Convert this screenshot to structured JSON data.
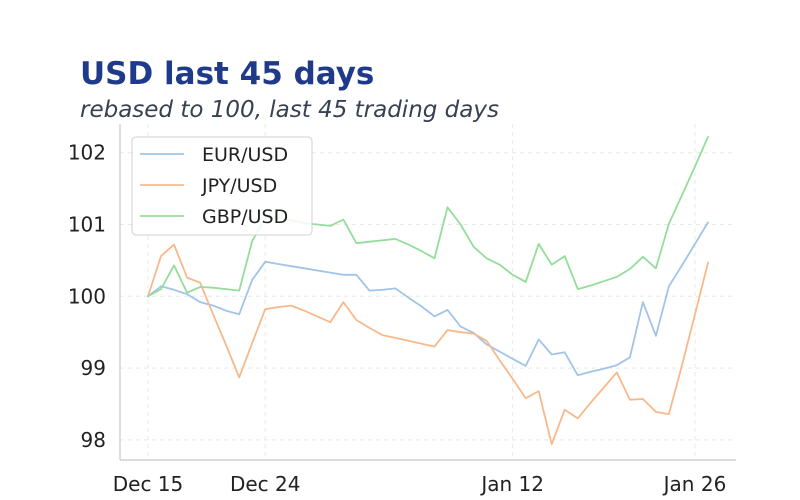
{
  "chart_data": {
    "type": "line",
    "title": "USD last 45 days",
    "subtitle": "rebased to 100, last 45 trading days",
    "xlabel": "",
    "ylabel": "",
    "x_tick_labels": [
      "Dec 15",
      "Dec 24",
      "Jan 12",
      "Jan 26"
    ],
    "x_tick_indices": [
      0,
      9,
      28,
      42
    ],
    "y_ticks": [
      98,
      99,
      100,
      101,
      102
    ],
    "ylim": [
      97.72,
      102.4
    ],
    "grid": true,
    "legend_position": "top-left",
    "colors": [
      "#a1c4e8",
      "#f7b98c",
      "#95dd9b"
    ],
    "series": [
      {
        "name": "EUR/USD",
        "values": [
          100.0,
          100.14,
          100.09,
          100.03,
          99.92,
          99.87,
          99.8,
          99.75,
          100.23,
          100.48,
          100.45,
          100.42,
          100.39,
          100.36,
          100.33,
          100.3,
          100.3,
          100.08,
          100.09,
          100.11,
          99.98,
          99.86,
          99.72,
          99.81,
          99.58,
          99.49,
          99.33,
          99.23,
          99.13,
          99.03,
          99.4,
          99.19,
          99.22,
          98.9,
          98.95,
          98.99,
          99.04,
          99.15,
          99.92,
          99.45,
          100.14,
          100.43,
          100.73,
          101.03
        ]
      },
      {
        "name": "JPY/USD",
        "values": [
          100.0,
          100.56,
          100.72,
          100.26,
          100.19,
          99.75,
          99.32,
          98.87,
          99.35,
          99.82,
          99.85,
          99.87,
          99.8,
          99.72,
          99.64,
          99.92,
          99.67,
          99.56,
          99.46,
          99.42,
          99.38,
          99.34,
          99.3,
          99.53,
          99.5,
          99.48,
          99.38,
          99.11,
          98.85,
          98.58,
          98.68,
          97.94,
          98.42,
          98.3,
          98.52,
          98.73,
          98.94,
          98.56,
          98.57,
          98.39,
          98.36,
          99.04,
          99.75,
          100.47
        ]
      },
      {
        "name": "GBP/USD",
        "values": [
          100.0,
          100.1,
          100.43,
          100.05,
          100.13,
          100.12,
          100.1,
          100.08,
          100.77,
          101.09,
          101.1,
          101.06,
          101.02,
          101.0,
          100.98,
          101.07,
          100.74,
          100.76,
          100.78,
          100.8,
          100.72,
          100.63,
          100.53,
          101.24,
          101.0,
          100.69,
          100.53,
          100.44,
          100.3,
          100.2,
          100.73,
          100.44,
          100.56,
          100.1,
          100.15,
          100.21,
          100.27,
          100.38,
          100.55,
          100.39,
          101.01,
          101.41,
          101.81,
          102.22
        ]
      }
    ]
  }
}
